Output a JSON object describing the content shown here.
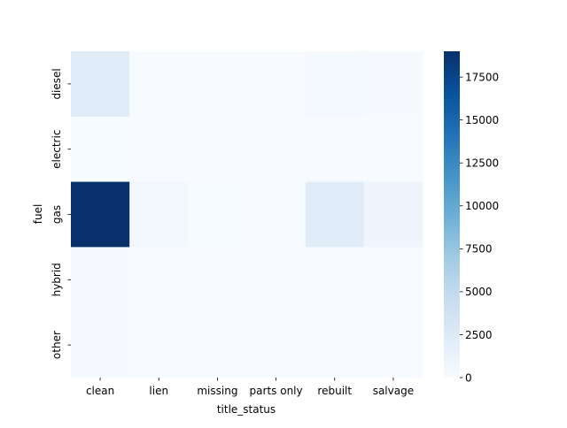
{
  "chart_data": {
    "type": "heatmap",
    "xlabel": "title_status",
    "ylabel": "fuel",
    "x_categories": [
      "clean",
      "lien",
      "missing",
      "parts only",
      "rebuilt",
      "salvage"
    ],
    "y_categories": [
      "diesel",
      "electric",
      "gas",
      "hybrid",
      "other"
    ],
    "values": [
      [
        2200,
        40,
        10,
        5,
        300,
        90
      ],
      [
        50,
        0,
        0,
        0,
        10,
        5
      ],
      [
        19000,
        600,
        60,
        30,
        2200,
        900
      ],
      [
        80,
        5,
        0,
        0,
        20,
        10
      ],
      [
        100,
        5,
        0,
        0,
        30,
        10
      ]
    ],
    "colormap": "Blues",
    "colorbar": {
      "vmin": 0,
      "vmax": 19000,
      "ticks": [
        0,
        2500,
        5000,
        7500,
        10000,
        12500,
        15000,
        17500
      ]
    }
  }
}
